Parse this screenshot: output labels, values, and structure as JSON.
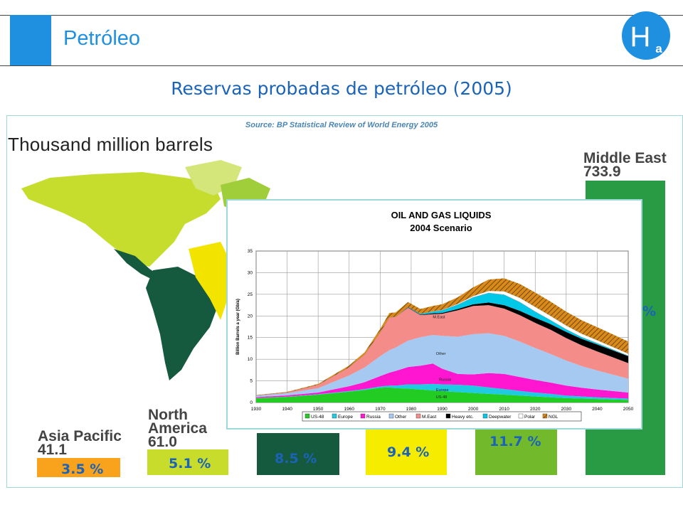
{
  "header": {
    "title": "Petróleo",
    "logo_letter": "H",
    "logo_sub": "a",
    "accent": "#1f8fe0"
  },
  "slide": {
    "subtitle": "Reservas probadas de petróleo (2005)",
    "source": "Source:  BP Statistical  Review of World Energy 2005",
    "unit_label": "Thousand million barrels"
  },
  "chart_data": [
    {
      "type": "bar",
      "title": "Thousand million barrels",
      "categories": [
        "Asia Pacific",
        "North America",
        "",
        "",
        "",
        "Middle East"
      ],
      "values": [
        41.1,
        61.0,
        null,
        null,
        null,
        733.9
      ],
      "value_labels": [
        "41.1",
        "61.0",
        "",
        "",
        "",
        "733.9"
      ],
      "percent_labels": [
        "3.5 %",
        "5.1 %",
        "8.5 %",
        "9.4 %",
        "11.7 %",
        "%"
      ],
      "colors": [
        "#f9a21c",
        "#c8dc2b",
        "#155a3e",
        "#f5ec00",
        "#72b92b",
        "#2a9b45"
      ]
    },
    {
      "type": "area",
      "title": "OIL AND GAS LIQUIDS",
      "subtitle": "2004 Scenario",
      "ylabel": "Billion Barrels a year (Gb/a)",
      "xlabel": "",
      "xlim": [
        1930,
        2050
      ],
      "ylim": [
        0,
        35
      ],
      "x_ticks": [
        1930,
        1940,
        1950,
        1960,
        1970,
        1980,
        1990,
        2000,
        2010,
        2020,
        2030,
        2040,
        2050
      ],
      "y_ticks": [
        0,
        5,
        10,
        15,
        20,
        25,
        30,
        35
      ],
      "grid": true,
      "legend_position": "bottom",
      "x": [
        1930,
        1940,
        1950,
        1960,
        1965,
        1970,
        1973,
        1975,
        1979,
        1983,
        1987,
        1990,
        1995,
        2000,
        2005,
        2010,
        2015,
        2020,
        2025,
        2030,
        2035,
        2040,
        2045,
        2050
      ],
      "series": [
        {
          "name": "US-48",
          "color": "#22cc22",
          "values": [
            1.0,
            1.3,
            1.8,
            2.5,
            2.9,
            3.4,
            3.5,
            3.3,
            3.2,
            3.0,
            2.8,
            2.6,
            2.4,
            2.2,
            2.0,
            1.8,
            1.6,
            1.4,
            1.2,
            1.0,
            0.9,
            0.8,
            0.7,
            0.6
          ]
        },
        {
          "name": "Europe",
          "color": "#1ecbe0",
          "values": [
            0.05,
            0.05,
            0.1,
            0.15,
            0.2,
            0.3,
            0.4,
            0.6,
            1.0,
            1.2,
            1.5,
            1.6,
            1.7,
            1.7,
            1.5,
            1.3,
            1.1,
            0.9,
            0.8,
            0.6,
            0.5,
            0.4,
            0.35,
            0.3
          ]
        },
        {
          "name": "Russia",
          "color": "#ff16d0",
          "values": [
            0.2,
            0.3,
            0.4,
            1.1,
            1.6,
            2.4,
            3.0,
            3.4,
            4.0,
            4.3,
            4.7,
            3.6,
            2.5,
            2.6,
            3.3,
            3.5,
            3.2,
            2.9,
            2.6,
            2.3,
            2.0,
            1.8,
            1.6,
            1.4
          ]
        },
        {
          "name": "Other",
          "color": "#a5c9f0",
          "values": [
            0.3,
            0.5,
            1.0,
            2.5,
            3.4,
            4.6,
            5.2,
            5.4,
            6.1,
            6.6,
            6.6,
            7.6,
            8.6,
            9.3,
            9.2,
            8.8,
            8.2,
            7.4,
            6.6,
            5.8,
            5.0,
            4.4,
            3.8,
            3.2
          ]
        },
        {
          "name": "M.East",
          "color": "#f48c8a",
          "values": [
            0.1,
            0.2,
            0.8,
            1.9,
            3.0,
            5.5,
            7.6,
            7.1,
            7.6,
            5.1,
            4.8,
            5.1,
            6.1,
            6.5,
            6.5,
            6.3,
            6.1,
            5.8,
            5.6,
            5.2,
            4.8,
            4.4,
            4.0,
            3.6
          ]
        },
        {
          "name": "Heavy etc.",
          "color": "#000000",
          "values": [
            0,
            0,
            0,
            0,
            0,
            0,
            0,
            0,
            0.1,
            0.1,
            0.2,
            0.2,
            0.3,
            0.4,
            0.6,
            0.8,
            1.0,
            1.2,
            1.3,
            1.4,
            1.5,
            1.6,
            1.6,
            1.6
          ]
        },
        {
          "name": "Deepwater",
          "color": "#00c8e6",
          "values": [
            0,
            0,
            0,
            0,
            0,
            0,
            0,
            0,
            0.1,
            0.2,
            0.4,
            0.6,
            1.0,
            1.6,
            2.2,
            2.4,
            2.0,
            1.4,
            0.9,
            0.6,
            0.4,
            0.3,
            0.2,
            0.1
          ]
        },
        {
          "name": "Polar",
          "color": "#ffffff",
          "values": [
            0,
            0,
            0,
            0,
            0,
            0,
            0,
            0,
            0,
            0,
            0.1,
            0.1,
            0.2,
            0.3,
            0.5,
            0.8,
            1.0,
            1.1,
            1.0,
            0.9,
            0.8,
            0.7,
            0.6,
            0.5
          ]
        },
        {
          "name": "NGL",
          "color": "#d98a1a",
          "values": [
            0.05,
            0.1,
            0.2,
            0.4,
            0.5,
            0.8,
            1.0,
            1.0,
            1.1,
            1.1,
            1.2,
            1.3,
            1.5,
            2.0,
            2.6,
            3.0,
            3.2,
            3.3,
            3.3,
            3.2,
            3.1,
            3.0,
            2.9,
            2.8
          ]
        }
      ],
      "annotations": [
        "M.East",
        "Other",
        "Russia",
        "Europe",
        "US-48"
      ]
    }
  ]
}
